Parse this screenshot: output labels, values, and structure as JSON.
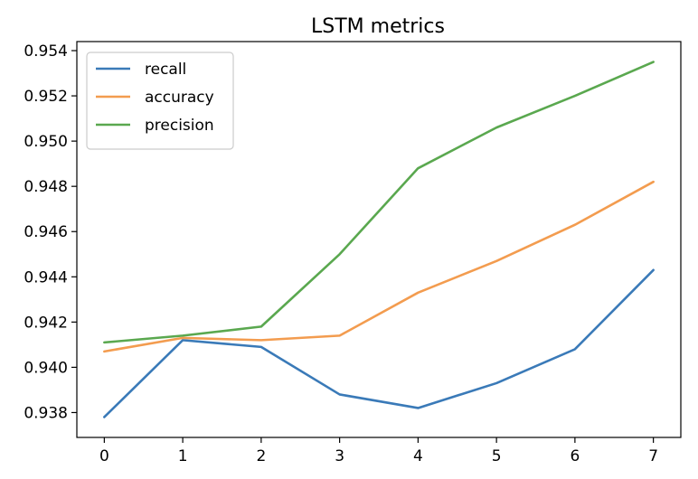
{
  "chart_data": {
    "type": "line",
    "title": "LSTM metrics",
    "xlabel": "",
    "ylabel": "",
    "x": [
      0,
      1,
      2,
      3,
      4,
      5,
      6,
      7
    ],
    "xticks": [
      "0",
      "1",
      "2",
      "3",
      "4",
      "5",
      "6",
      "7"
    ],
    "xlim": [
      -0.35,
      7.35
    ],
    "yticks": [
      "0.938",
      "0.940",
      "0.942",
      "0.944",
      "0.946",
      "0.948",
      "0.950",
      "0.952",
      "0.954"
    ],
    "ylim": [
      0.9369,
      0.9544
    ],
    "grid": false,
    "legend_position": "upper-left",
    "series": [
      {
        "name": "recall",
        "color": "#3a7ab8",
        "values": [
          0.9378,
          0.9412,
          0.9409,
          0.9388,
          0.9382,
          0.9393,
          0.9408,
          0.9443
        ]
      },
      {
        "name": "accuracy",
        "color": "#f39c4f",
        "values": [
          0.9407,
          0.9413,
          0.9412,
          0.9414,
          0.9433,
          0.9447,
          0.9463,
          0.9482
        ]
      },
      {
        "name": "precision",
        "color": "#5aa84f",
        "values": [
          0.9411,
          0.9414,
          0.9418,
          0.945,
          0.9488,
          0.9506,
          0.952,
          0.9535
        ]
      }
    ]
  }
}
